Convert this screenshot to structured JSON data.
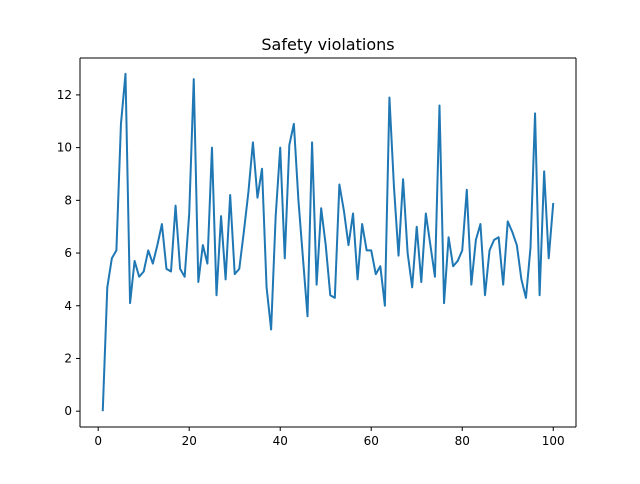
{
  "chart_data": {
    "type": "line",
    "title": "Safety violations",
    "xlabel": "",
    "ylabel": "",
    "xlim": [
      -4,
      105
    ],
    "ylim": [
      -0.6,
      13.4
    ],
    "xticks": [
      0,
      20,
      40,
      60,
      80,
      100
    ],
    "yticks": [
      0,
      2,
      4,
      6,
      8,
      10,
      12
    ],
    "grid": false,
    "legend": "none",
    "series": [
      {
        "color": "#1f77b4",
        "x": [
          1,
          2,
          3,
          4,
          5,
          6,
          7,
          8,
          9,
          10,
          11,
          12,
          13,
          14,
          15,
          16,
          17,
          18,
          19,
          20,
          21,
          22,
          23,
          24,
          25,
          26,
          27,
          28,
          29,
          30,
          31,
          32,
          33,
          34,
          35,
          36,
          37,
          38,
          39,
          40,
          41,
          42,
          43,
          44,
          45,
          46,
          47,
          48,
          49,
          50,
          51,
          52,
          53,
          54,
          55,
          56,
          57,
          58,
          59,
          60,
          61,
          62,
          63,
          64,
          65,
          66,
          67,
          68,
          69,
          70,
          71,
          72,
          73,
          74,
          75,
          76,
          77,
          78,
          79,
          80,
          81,
          82,
          83,
          84,
          85,
          86,
          87,
          88,
          89,
          90,
          91,
          92,
          93,
          94,
          95,
          96,
          97,
          98,
          99,
          100
        ],
        "values": [
          0.0,
          4.7,
          5.8,
          6.1,
          10.9,
          12.8,
          4.1,
          5.7,
          5.1,
          5.3,
          6.1,
          5.6,
          6.3,
          7.1,
          5.4,
          5.3,
          7.8,
          5.4,
          5.1,
          7.5,
          12.6,
          4.9,
          6.3,
          5.6,
          10.0,
          4.4,
          7.4,
          5.0,
          8.2,
          5.2,
          5.4,
          6.8,
          8.3,
          10.2,
          8.1,
          9.2,
          4.7,
          3.1,
          7.4,
          10.0,
          5.8,
          10.1,
          10.9,
          8.0,
          5.8,
          3.6,
          10.2,
          4.8,
          7.7,
          6.3,
          4.4,
          4.3,
          8.6,
          7.6,
          6.3,
          7.5,
          5.0,
          7.1,
          6.1,
          6.1,
          5.2,
          5.5,
          4.0,
          11.9,
          8.5,
          5.9,
          8.8,
          6.0,
          4.7,
          7.0,
          4.9,
          7.5,
          6.3,
          5.1,
          11.6,
          4.1,
          6.6,
          5.5,
          5.7,
          6.1,
          8.4,
          4.8,
          6.5,
          7.1,
          4.4,
          6.1,
          6.5,
          6.6,
          4.8,
          7.2,
          6.8,
          6.3,
          5.0,
          4.3,
          6.2,
          11.3,
          4.4,
          9.1,
          5.8,
          7.9
        ]
      }
    ]
  }
}
